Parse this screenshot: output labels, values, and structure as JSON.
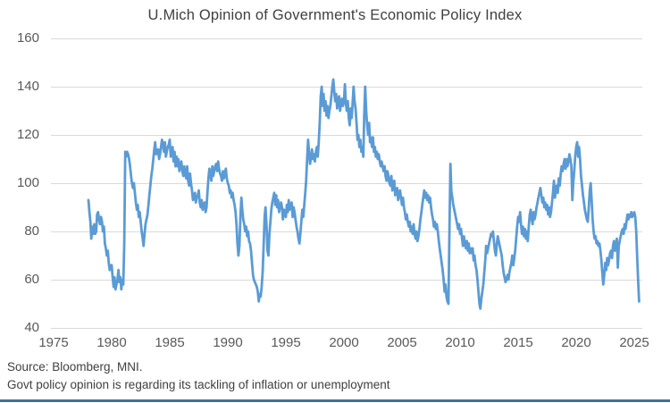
{
  "title": "U.Mich Opinion of Government's Economic Policy Index",
  "footer": {
    "source_line": "Source: Bloomberg, MNI.",
    "note_line": "Govt policy opinion is regarding its tackling of inflation or unemployment"
  },
  "colors": {
    "background": "#FFFFFF",
    "line": "#5B9BD5",
    "gridline": "#D9D9D9",
    "axis_text": "#595959",
    "title_text": "#3F3F3F",
    "footer_text": "#404040",
    "bottom_border": "#41719C"
  },
  "chart_data": {
    "type": "line",
    "title": "U.Mich Opinion of Government's Economic Policy Index",
    "xlabel": "",
    "ylabel": "",
    "legend": "none",
    "grid": "horizontal",
    "x_axis": {
      "ticks": [
        1975,
        1980,
        1985,
        1990,
        1995,
        2000,
        2005,
        2010,
        2015,
        2020,
        2025
      ],
      "min": 1974.8,
      "max": 2025.8
    },
    "y_axis": {
      "ticks": [
        40,
        60,
        80,
        100,
        120,
        140,
        160
      ],
      "min": 40,
      "max": 160
    },
    "ylim": [
      40,
      160
    ],
    "series": [
      {
        "name": "U.Mich Opinion of Government's Economic Policy Index",
        "start_year": 1978.0,
        "interval_years": 0.0833333,
        "values": [
          93,
          88,
          84,
          77,
          82,
          79,
          83,
          79,
          80,
          87,
          88,
          85,
          83,
          86,
          84,
          80,
          82,
          75,
          73,
          70,
          72,
          67,
          64,
          66,
          66,
          61,
          57,
          61,
          56,
          58,
          60,
          64,
          59,
          61,
          56,
          60,
          58,
          75,
          113,
          111,
          113,
          112,
          110,
          107,
          103,
          100,
          98,
          100,
          96,
          92,
          89,
          91,
          86,
          88,
          84,
          80,
          77,
          74,
          79,
          83,
          85,
          87,
          91,
          95,
          99,
          103,
          106,
          110,
          114,
          117,
          112,
          113,
          114,
          110,
          112,
          115,
          118,
          116,
          113,
          117,
          111,
          113,
          115,
          116,
          118,
          111,
          113,
          115,
          109,
          113,
          107,
          111,
          107,
          110,
          105,
          108,
          109,
          105,
          103,
          107,
          104,
          102,
          107,
          101,
          99,
          104,
          100,
          97,
          93,
          95,
          96,
          92,
          94,
          95,
          97,
          92,
          90,
          93,
          89,
          91,
          92,
          88,
          90,
          96,
          102,
          106,
          104,
          101,
          107,
          103,
          105,
          107,
          108,
          105,
          109,
          106,
          104,
          103,
          101,
          105,
          102,
          104,
          106,
          102,
          100,
          99,
          96,
          97,
          94,
          96,
          93,
          91,
          88,
          83,
          75,
          70,
          74,
          86,
          94,
          89,
          85,
          83,
          80,
          82,
          78,
          80,
          76,
          75,
          72,
          67,
          62,
          60,
          59,
          58,
          57,
          55,
          51,
          54,
          53,
          57,
          63,
          74,
          86,
          90,
          83,
          72,
          70,
          79,
          84,
          89,
          92,
          94,
          96,
          91,
          95,
          90,
          93,
          88,
          90,
          92,
          90,
          85,
          89,
          87,
          86,
          91,
          88,
          93,
          89,
          91,
          92,
          86,
          90,
          88,
          85,
          82,
          80,
          77,
          75,
          79,
          84,
          89,
          86,
          91,
          96,
          101,
          110,
          118,
          112,
          108,
          111,
          114,
          110,
          112,
          109,
          113,
          115,
          111,
          117,
          125,
          136,
          140,
          132,
          137,
          130,
          134,
          128,
          132,
          127,
          130,
          132,
          136,
          140,
          143,
          138,
          134,
          137,
          131,
          134,
          136,
          130,
          133,
          135,
          132,
          134,
          141,
          133,
          130,
          134,
          127,
          124,
          131,
          127,
          133,
          140,
          134,
          131,
          125,
          118,
          120,
          115,
          118,
          113,
          115,
          111,
          128,
          140,
          130,
          124,
          120,
          125,
          117,
          119,
          115,
          119,
          113,
          115,
          111,
          113,
          110,
          112,
          109,
          107,
          109,
          107,
          105,
          107,
          103,
          101,
          105,
          103,
          100,
          99,
          103,
          97,
          99,
          101,
          95,
          97,
          98,
          93,
          95,
          97,
          94,
          91,
          94,
          90,
          88,
          85,
          87,
          84,
          82,
          84,
          80,
          82,
          79,
          83,
          79,
          77,
          80,
          76,
          78,
          81,
          85,
          88,
          91,
          94,
          97,
          94,
          96,
          93,
          95,
          92,
          94,
          90,
          87,
          85,
          82,
          84,
          81,
          83,
          80,
          76,
          73,
          70,
          67,
          64,
          60,
          55,
          58,
          53,
          51,
          50,
          80,
          108,
          97,
          94,
          91,
          89,
          87,
          85,
          83,
          81,
          83,
          79,
          81,
          77,
          74,
          78,
          75,
          73,
          76,
          72,
          75,
          71,
          73,
          71,
          73,
          68,
          70,
          66,
          64,
          60,
          55,
          50,
          48,
          52,
          55,
          58,
          63,
          68,
          74,
          71,
          73,
          75,
          77,
          79,
          78,
          80,
          76,
          72,
          70,
          75,
          78,
          76,
          74,
          72,
          70,
          66,
          63,
          61,
          59,
          60,
          62,
          60,
          63,
          65,
          67,
          70,
          66,
          69,
          72,
          77,
          82,
          86,
          84,
          88,
          83,
          79,
          82,
          78,
          81,
          77,
          80,
          76,
          82,
          87,
          89,
          85,
          83,
          88,
          85,
          87,
          90,
          92,
          94,
          96,
          98,
          95,
          92,
          94,
          90,
          92,
          89,
          91,
          87,
          90,
          86,
          88,
          92,
          96,
          101,
          94,
          97,
          99,
          96,
          102,
          99,
          104,
          107,
          105,
          108,
          110,
          106,
          110,
          107,
          109,
          112,
          110,
          107,
          93,
          100,
          105,
          111,
          115,
          117,
          111,
          115,
          110,
          103,
          99,
          95,
          92,
          89,
          87,
          85,
          84,
          90,
          97,
          100,
          93,
          85,
          80,
          77,
          78,
          75,
          76,
          74,
          75,
          72,
          68,
          63,
          58,
          62,
          67,
          64,
          69,
          66,
          68,
          71,
          72,
          69,
          74,
          76,
          72,
          75,
          77,
          65,
          74,
          76,
          78,
          80,
          81,
          79,
          83,
          81,
          84,
          87,
          85,
          87,
          86,
          88,
          86,
          87,
          88,
          86,
          80,
          70,
          60,
          51
        ]
      }
    ]
  }
}
